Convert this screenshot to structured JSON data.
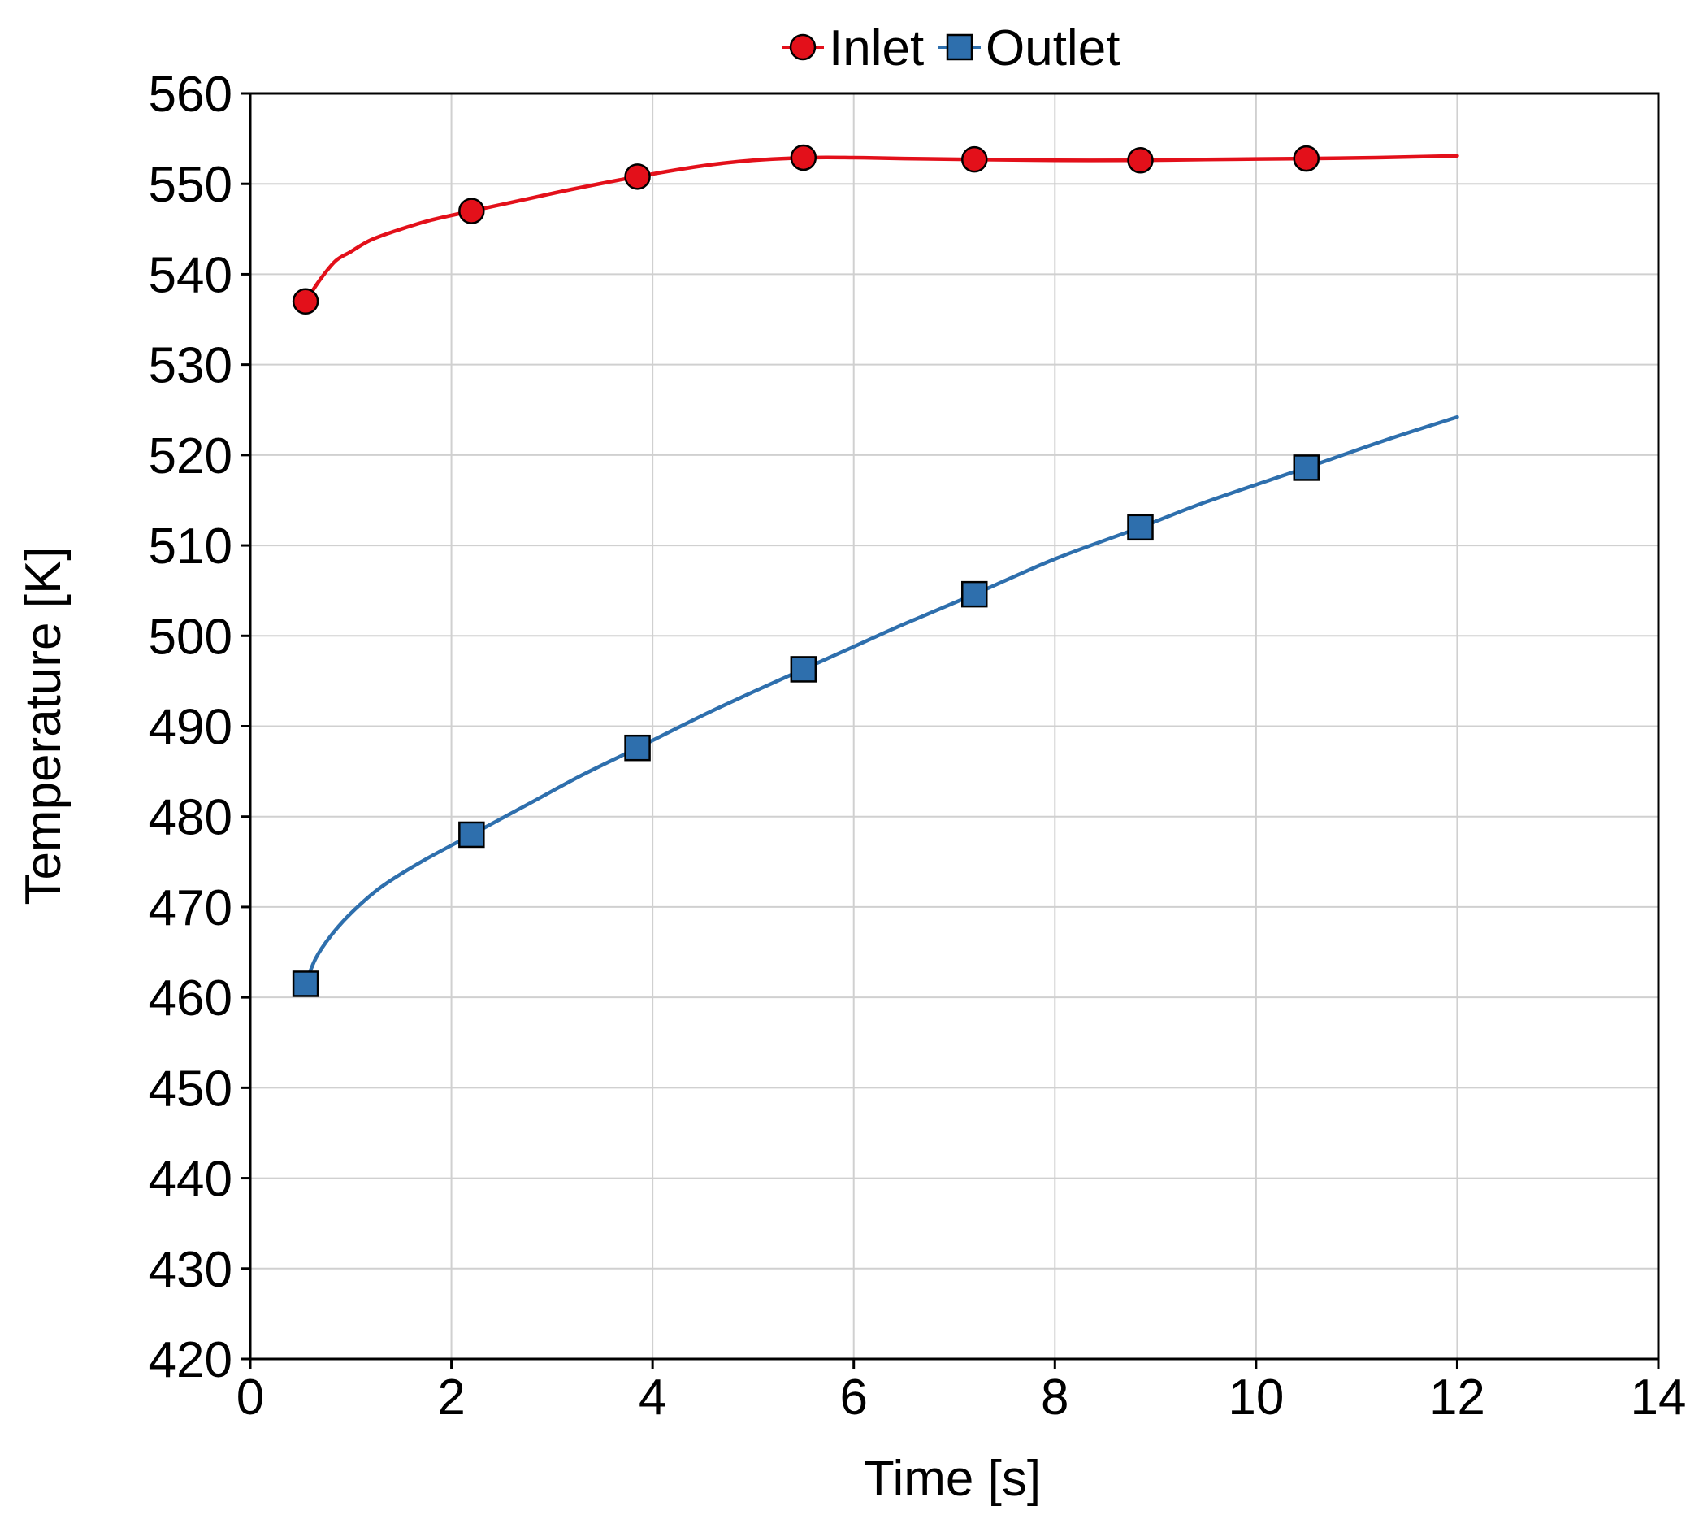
{
  "chart_data": {
    "type": "line",
    "xlabel": "Time [s]",
    "ylabel": "Temperature [K]",
    "xlim": [
      0,
      14
    ],
    "ylim": [
      420,
      560
    ],
    "xticks": [
      0,
      2,
      4,
      6,
      8,
      10,
      12,
      14
    ],
    "yticks": [
      420,
      430,
      440,
      450,
      460,
      470,
      480,
      490,
      500,
      510,
      520,
      530,
      540,
      550,
      560
    ],
    "grid": true,
    "legend_position": "top-center",
    "series": [
      {
        "name": "Inlet",
        "color": "#e3101a",
        "marker": "circle",
        "curve": {
          "x": [
            0.55,
            0.7,
            0.85,
            1.0,
            1.2,
            1.5,
            1.8,
            2.2,
            2.7,
            3.2,
            3.85,
            4.5,
            5.0,
            5.55,
            6.0,
            6.5,
            7.2,
            8.0,
            8.85,
            9.5,
            10.5,
            11.2,
            12.0
          ],
          "y": [
            537.0,
            539.5,
            541.5,
            542.5,
            543.8,
            545.0,
            546.0,
            547.0,
            548.2,
            549.4,
            550.8,
            552.0,
            552.6,
            552.9,
            552.9,
            552.8,
            552.7,
            552.6,
            552.6,
            552.7,
            552.8,
            552.9,
            553.1
          ]
        },
        "markers": {
          "x": [
            0.55,
            2.2,
            3.85,
            5.5,
            7.2,
            8.85,
            10.5
          ],
          "y": [
            537.0,
            547.0,
            550.8,
            552.9,
            552.7,
            552.6,
            552.8
          ]
        }
      },
      {
        "name": "Outlet",
        "color": "#2e6fad",
        "marker": "square",
        "curve": {
          "x": [
            0.55,
            0.65,
            0.8,
            1.0,
            1.3,
            1.7,
            2.2,
            2.8,
            3.3,
            3.85,
            4.5,
            5.0,
            5.5,
            6.0,
            6.5,
            7.2,
            8.0,
            8.85,
            9.5,
            10.5,
            11.3,
            12.0
          ],
          "y": [
            461.5,
            464.3,
            466.8,
            469.3,
            472.2,
            475.0,
            478.0,
            481.6,
            484.6,
            487.6,
            491.2,
            493.8,
            496.3,
            498.8,
            501.3,
            504.6,
            508.5,
            512.0,
            514.8,
            518.6,
            521.7,
            524.2
          ]
        },
        "markers": {
          "x": [
            0.55,
            2.2,
            3.85,
            5.5,
            7.2,
            8.85,
            10.5
          ],
          "y": [
            461.5,
            478.0,
            487.6,
            496.3,
            504.6,
            512.0,
            518.6
          ]
        }
      }
    ]
  }
}
